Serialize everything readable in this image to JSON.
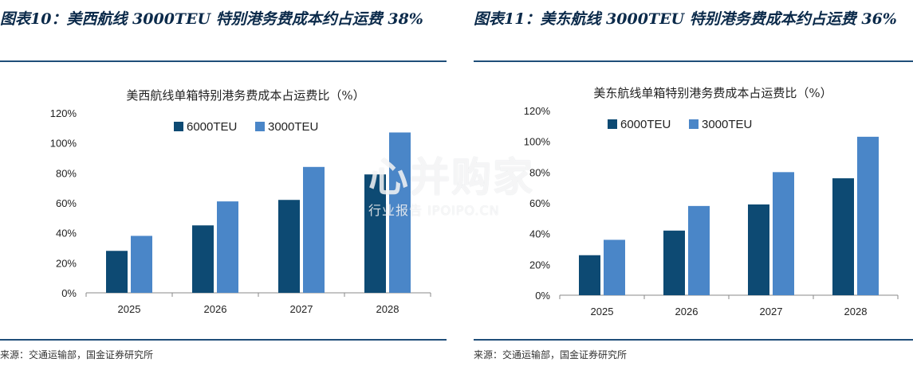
{
  "panels": [
    {
      "figure_title": "图表10：美西航线 3000TEU 特别港务费成本约占运费 38%",
      "source": "来源：交通运输部，国金证券研究所"
    },
    {
      "figure_title": "图表11：美东航线 3000TEU 特别港务费成本约占运费 36%",
      "source": "来源：交通运输部，国金证券研究所"
    }
  ],
  "watermark": {
    "main": "心并购家",
    "sub": "行业报告 IPOIPO.CN"
  },
  "colors": {
    "series_dark": "#0d4a73",
    "series_light": "#4a86c8",
    "rule": "#1f4e79"
  },
  "chart_data": [
    {
      "type": "bar",
      "title": "美西航线单箱特别港务费成本占运费比（%）",
      "categories": [
        "2025",
        "2026",
        "2027",
        "2028"
      ],
      "series": [
        {
          "name": "6000TEU",
          "values": [
            28,
            45,
            62,
            79
          ]
        },
        {
          "name": "3000TEU",
          "values": [
            38,
            61,
            84,
            107
          ]
        }
      ],
      "ylim": [
        0,
        120
      ],
      "yticks": [
        "0%",
        "20%",
        "40%",
        "60%",
        "80%",
        "100%",
        "120%"
      ],
      "legend": "top-center",
      "grid": false
    },
    {
      "type": "bar",
      "title": "美东航线单箱特别港务费成本占运费比（%）",
      "categories": [
        "2025",
        "2026",
        "2027",
        "2028"
      ],
      "series": [
        {
          "name": "6000TEU",
          "values": [
            26,
            42,
            59,
            76
          ]
        },
        {
          "name": "3000TEU",
          "values": [
            36,
            58,
            80,
            103
          ]
        }
      ],
      "ylim": [
        0,
        120
      ],
      "yticks": [
        "0%",
        "20%",
        "40%",
        "60%",
        "80%",
        "100%",
        "120%"
      ],
      "legend": "top-center",
      "grid": false
    }
  ]
}
